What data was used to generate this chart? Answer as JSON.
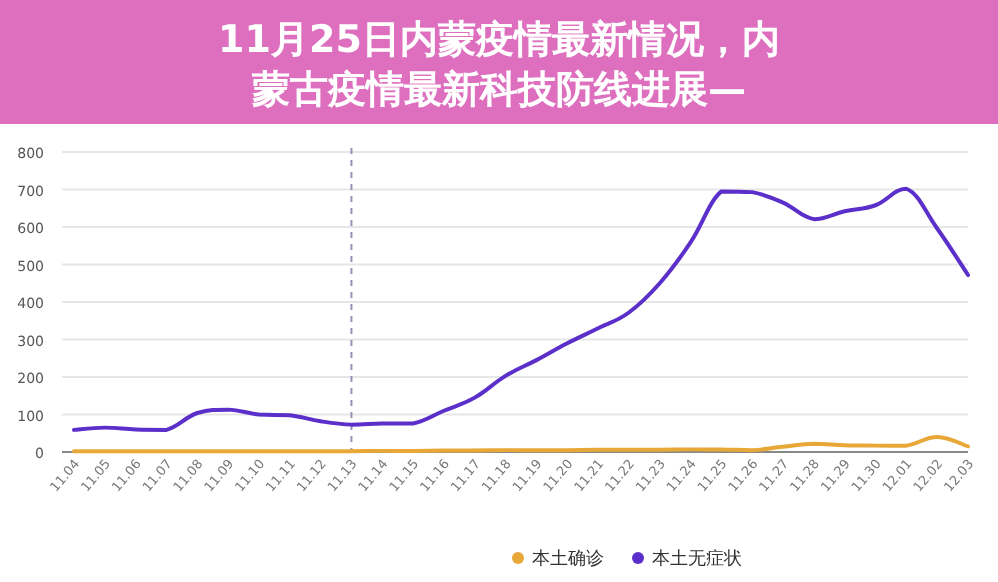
{
  "chart_data": {
    "type": "line",
    "title": "11月25日内蒙疫情最新情况，内蒙古疫情最新科技防线进展—",
    "categories": [
      "11.04",
      "11.05",
      "11.06",
      "11.07",
      "11.08",
      "11.09",
      "11.10",
      "11.11",
      "11.12",
      "11.13",
      "11.14",
      "11.15",
      "11.16",
      "11.17",
      "11.18",
      "11.19",
      "11.20",
      "11.21",
      "11.22",
      "11.23",
      "11.24",
      "11.25",
      "11.26",
      "11.27",
      "11.28",
      "11.29",
      "11.30",
      "12.01",
      "12.02",
      "12.03"
    ],
    "series": [
      {
        "name": "本土确诊",
        "color": "#e8a838",
        "values": [
          2,
          2,
          2,
          2,
          2,
          2,
          2,
          2,
          2,
          2,
          3,
          3,
          4,
          4,
          5,
          5,
          5,
          6,
          6,
          6,
          7,
          7,
          5,
          14,
          22,
          18,
          17,
          17,
          40,
          15
        ]
      },
      {
        "name": "本土无症状",
        "color": "#5b2fc9",
        "values": [
          59,
          65,
          60,
          59,
          104,
          113,
          100,
          98,
          82,
          73,
          76,
          76,
          110,
          145,
          203,
          245,
          290,
          330,
          372,
          450,
          559,
          695,
          693,
          665,
          621,
          642,
          658,
          702,
          596,
          472
        ]
      }
    ],
    "ylim": [
      0,
      800
    ],
    "yticks": [
      0,
      100,
      200,
      300,
      400,
      500,
      600,
      700,
      800
    ],
    "grid": "y",
    "legend": "bottom",
    "marker": "none",
    "line_style": "solid",
    "ref_lines": [
      {
        "axis": "x",
        "value": "11.13",
        "line_style": "dashed",
        "color": "#9a8fb8"
      }
    ]
  }
}
